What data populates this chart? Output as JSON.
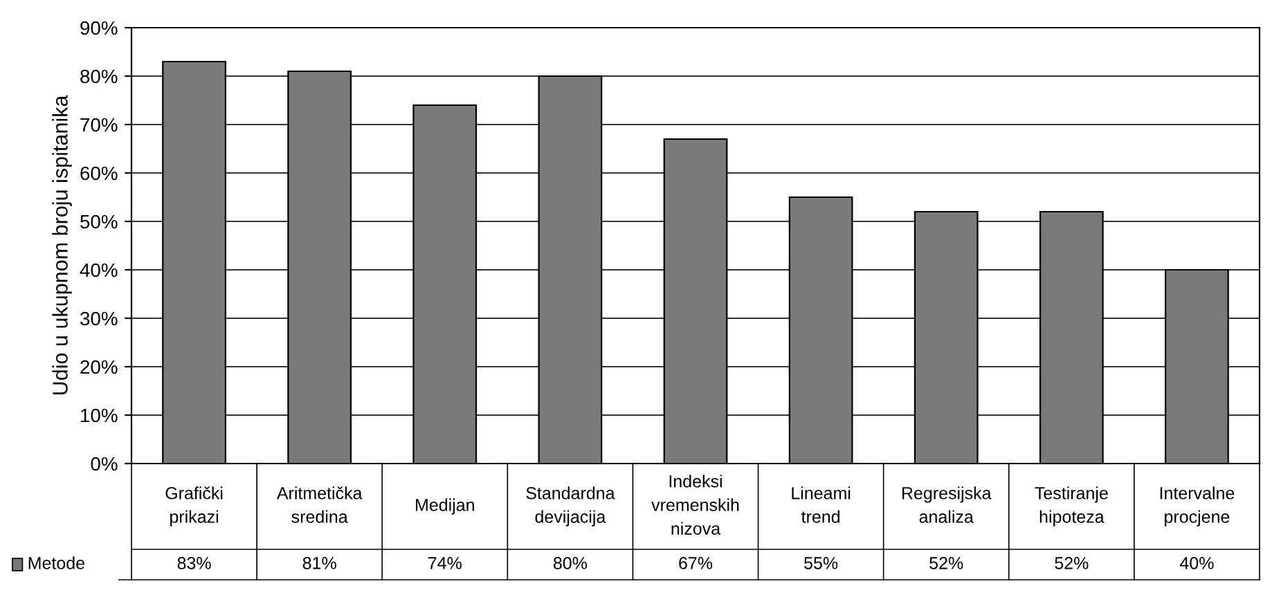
{
  "chart_data": {
    "type": "bar",
    "ylabel": "Udio u ukupnom broju ispitanika",
    "categories": [
      "Grafički prikazi",
      "Aritmetička sredina",
      "Medijan",
      "Standardna devijacija",
      "Indeksi vremenskih nizova",
      "Lineami trend",
      "Regresijska analiza",
      "Testiranje hipoteza",
      "Intervalne procjene"
    ],
    "series": [
      {
        "name": "Metode",
        "color": "#7a7a7a",
        "values": [
          83,
          81,
          74,
          80,
          67,
          55,
          52,
          52,
          40
        ],
        "value_labels": [
          "83%",
          "81%",
          "74%",
          "80%",
          "67%",
          "55%",
          "52%",
          "52%",
          "40%"
        ]
      }
    ],
    "ylim": [
      0,
      90
    ],
    "yticks": [
      {
        "value": 0,
        "label": "0%"
      },
      {
        "value": 10,
        "label": "10%"
      },
      {
        "value": 20,
        "label": "20%"
      },
      {
        "value": 30,
        "label": "30%"
      },
      {
        "value": 40,
        "label": "40%"
      },
      {
        "value": 50,
        "label": "50%"
      },
      {
        "value": 60,
        "label": "60%"
      },
      {
        "value": 70,
        "label": "70%"
      },
      {
        "value": 80,
        "label": "80%"
      },
      {
        "value": 90,
        "label": "90%"
      }
    ],
    "grid": "y",
    "legend": "bottom left"
  }
}
